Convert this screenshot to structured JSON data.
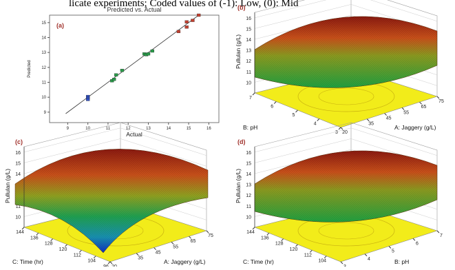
{
  "caption": "licate experiments; Coded values of (-1): Low, (0): Mid",
  "chart_data": [
    {
      "type": "scatter",
      "panel": "(a)",
      "title": "Predicted vs. Actual",
      "xlabel": "Actual",
      "ylabel": "Predicted",
      "x": [
        10,
        10,
        10,
        11.2,
        11.3,
        11.4,
        11.7,
        12.8,
        12.9,
        13,
        13.2,
        14.5,
        14.9,
        14.9,
        15.2,
        15.5
      ],
      "series": [
        {
          "name": "Predicted",
          "color": "#3050c0",
          "values": [
            10.05,
            9.95,
            9.85,
            11.1,
            11.2,
            11.5,
            11.8,
            12.9,
            12.85,
            12.9,
            13.1,
            14.4,
            14.7,
            15.05,
            15.15,
            15.5
          ]
        }
      ],
      "xlim": [
        8.1,
        16.5
      ],
      "ylim": [
        8.3,
        15.5
      ],
      "xticks": [
        9,
        10,
        11,
        12,
        13,
        14,
        15,
        16
      ],
      "yticks": [
        9,
        10,
        11,
        12,
        13,
        14,
        15
      ]
    },
    {
      "type": "surface",
      "panel": "(b)",
      "xlabel": "B: pH",
      "ylabel": "A: Jaggery (g/L)",
      "zlabel": "Pullulan (g/L)",
      "xlim": [
        3,
        7
      ],
      "xticks": [
        3,
        4,
        5,
        6,
        7
      ],
      "ylim": [
        20,
        75
      ],
      "yticks": [
        20,
        35,
        45,
        55,
        65,
        75
      ],
      "zlim": [
        9,
        16.5
      ],
      "zticks": [
        10,
        11,
        12,
        13,
        14,
        15,
        16
      ]
    },
    {
      "type": "surface",
      "panel": "(c)",
      "xlabel": "C: Time (hr)",
      "ylabel": "A: Jaggery (g/L)",
      "zlabel": "Pullulan (g/L)",
      "xlim": [
        96,
        144
      ],
      "xticks": [
        96,
        104,
        112,
        120,
        128,
        136,
        144
      ],
      "ylim": [
        20,
        75
      ],
      "yticks": [
        20,
        35,
        45,
        55,
        65,
        75
      ],
      "zlim": [
        9,
        16.5
      ],
      "zticks": [
        10,
        11,
        12,
        13,
        14,
        15,
        16
      ]
    },
    {
      "type": "surface",
      "panel": "(d)",
      "xlabel": "C: Time (hr)",
      "ylabel": "B: pH",
      "zlabel": "Pullulan (g/L)",
      "xlim": [
        96,
        144
      ],
      "xticks": [
        104,
        112,
        120,
        128,
        136,
        144
      ],
      "ylim": [
        3,
        7
      ],
      "yticks": [
        3,
        4,
        5,
        6,
        7
      ],
      "zlim": [
        9,
        16.5
      ],
      "zticks": [
        10,
        11,
        12,
        13,
        14,
        15,
        16
      ]
    }
  ]
}
